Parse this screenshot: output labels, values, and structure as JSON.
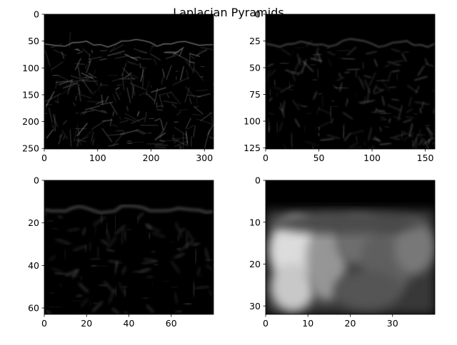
{
  "figure": {
    "title": "Laplacian Pyramids"
  },
  "chart_data": [
    {
      "type": "heatmap",
      "title": "",
      "colormap": "gray",
      "image_shape": [
        251,
        317
      ],
      "description_level": "sparse bright edges on black",
      "xlim": [
        0,
        317
      ],
      "ylim": [
        251,
        0
      ],
      "xticks": [
        0,
        100,
        200,
        300
      ],
      "yticks": [
        0,
        50,
        100,
        150,
        200,
        250
      ]
    },
    {
      "type": "heatmap",
      "title": "",
      "colormap": "gray",
      "image_shape": [
        126,
        159
      ],
      "xlim": [
        0,
        159
      ],
      "ylim": [
        126,
        0
      ],
      "xticks": [
        0,
        50,
        100,
        150
      ],
      "yticks": [
        0,
        25,
        50,
        75,
        100,
        125
      ]
    },
    {
      "type": "heatmap",
      "title": "",
      "colormap": "gray",
      "image_shape": [
        63,
        80
      ],
      "xlim": [
        0,
        80
      ],
      "ylim": [
        63,
        0
      ],
      "xticks": [
        0,
        20,
        40,
        60
      ],
      "yticks": [
        0,
        20,
        40,
        60
      ]
    },
    {
      "type": "heatmap",
      "title": "",
      "colormap": "gray",
      "image_shape": [
        32,
        40
      ],
      "xlim": [
        0,
        40
      ],
      "ylim": [
        32,
        0
      ],
      "xticks": [
        0,
        10,
        20,
        30
      ],
      "yticks": [
        0,
        10,
        20,
        30
      ]
    }
  ]
}
